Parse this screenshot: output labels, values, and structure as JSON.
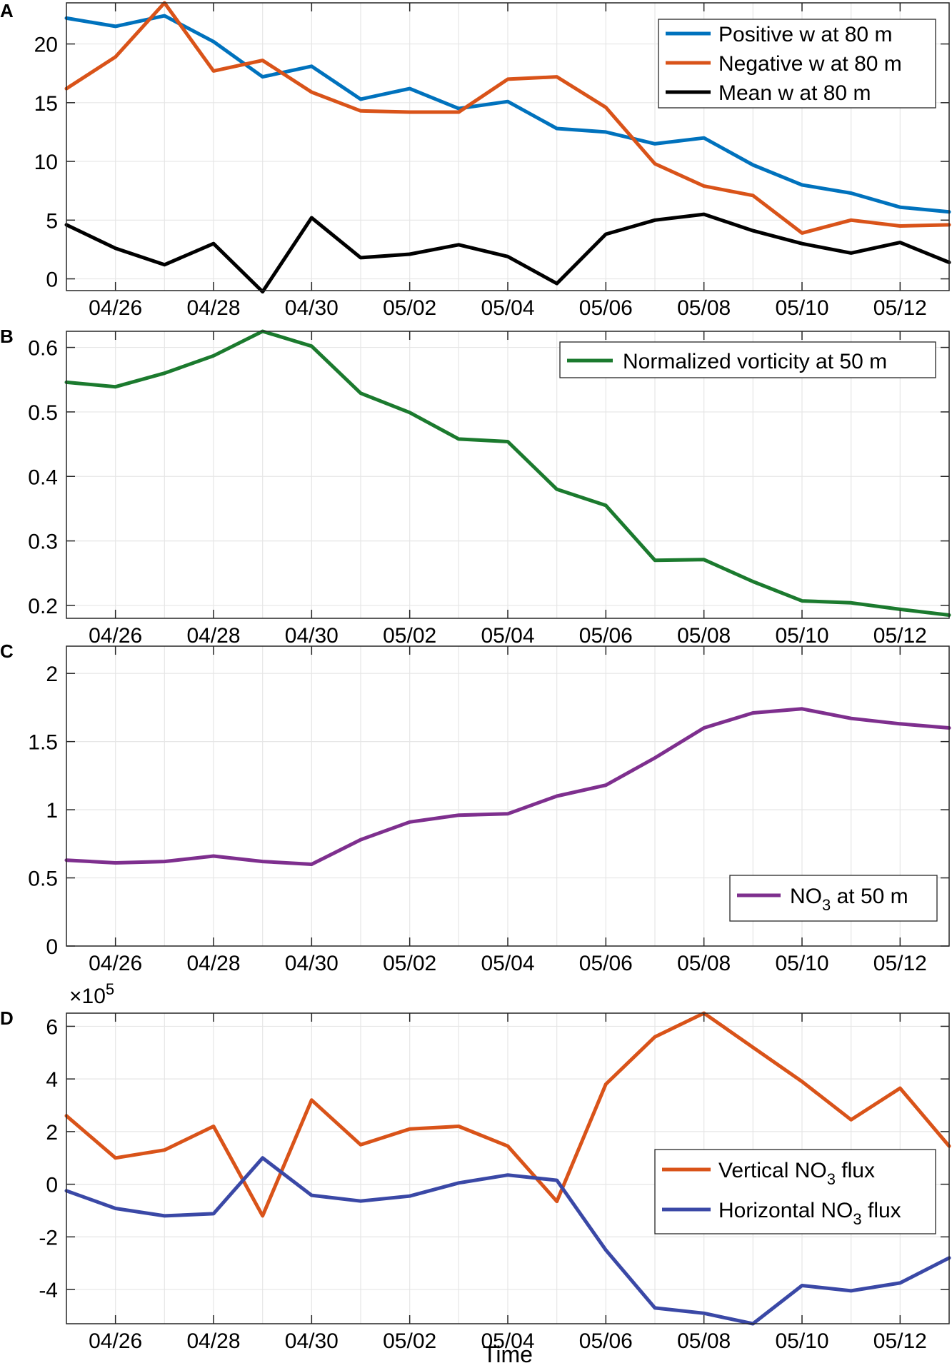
{
  "xlabel": "Time",
  "x_tick_labels": [
    "04/26",
    "04/28",
    "04/30",
    "05/02",
    "05/04",
    "05/06",
    "05/08",
    "05/10",
    "05/12"
  ],
  "chart_data": [
    {
      "panel": "A",
      "type": "line",
      "x": [
        "04/25",
        "04/26",
        "04/27",
        "04/28",
        "04/29",
        "04/30",
        "05/01",
        "05/02",
        "05/03",
        "05/04",
        "05/05",
        "05/06",
        "05/07",
        "05/08",
        "05/09",
        "05/10",
        "05/11",
        "05/12",
        "05/13"
      ],
      "ylim": [
        -1,
        23.5
      ],
      "yticks": [
        0,
        5,
        10,
        15,
        20
      ],
      "ytick_labels": [
        "0",
        "5",
        "10",
        "15",
        "20"
      ],
      "legend_position": "top-right",
      "series": [
        {
          "name": "Positive w at 80 m",
          "color": "#0072BD",
          "values": [
            22.2,
            21.5,
            22.4,
            20.2,
            17.2,
            18.1,
            15.3,
            16.2,
            14.5,
            15.1,
            12.8,
            12.5,
            11.5,
            12.0,
            9.7,
            8.0,
            7.3,
            6.1,
            5.7
          ]
        },
        {
          "name": "Negative w at 80 m",
          "color": "#D95319",
          "values": [
            16.2,
            18.9,
            23.5,
            17.7,
            18.6,
            15.9,
            14.3,
            14.2,
            14.2,
            17.0,
            17.2,
            14.6,
            9.8,
            7.9,
            7.1,
            3.9,
            5.0,
            4.5,
            4.6
          ]
        },
        {
          "name": "Mean w at 80 m",
          "color": "#000000",
          "values": [
            4.6,
            2.6,
            1.2,
            3.0,
            -1.1,
            5.2,
            1.8,
            2.1,
            2.9,
            1.9,
            -0.4,
            3.8,
            5.0,
            5.5,
            4.1,
            3.0,
            2.2,
            3.1,
            1.4
          ]
        }
      ]
    },
    {
      "panel": "B",
      "type": "line",
      "x": [
        "04/25",
        "04/26",
        "04/27",
        "04/28",
        "04/29",
        "04/30",
        "05/01",
        "05/02",
        "05/03",
        "05/04",
        "05/05",
        "05/06",
        "05/07",
        "05/08",
        "05/09",
        "05/10",
        "05/11",
        "05/12",
        "05/13"
      ],
      "ylim": [
        0.18,
        0.625
      ],
      "yticks": [
        0.2,
        0.3,
        0.4,
        0.5,
        0.6
      ],
      "ytick_labels": [
        "0.2",
        "0.3",
        "0.4",
        "0.5",
        "0.6"
      ],
      "legend_position": "top-right",
      "series": [
        {
          "name": "Normalized vorticity at 50 m",
          "color": "#1B7A2E",
          "values": [
            0.546,
            0.539,
            0.56,
            0.587,
            0.625,
            0.602,
            0.529,
            0.499,
            0.458,
            0.454,
            0.38,
            0.355,
            0.27,
            0.271,
            0.237,
            0.207,
            0.204,
            0.194,
            0.185
          ]
        }
      ]
    },
    {
      "panel": "C",
      "type": "line",
      "x": [
        "04/25",
        "04/26",
        "04/27",
        "04/28",
        "04/29",
        "04/30",
        "05/01",
        "05/02",
        "05/03",
        "05/04",
        "05/05",
        "05/06",
        "05/07",
        "05/08",
        "05/09",
        "05/10",
        "05/11",
        "05/12",
        "05/13"
      ],
      "ylim": [
        0,
        2.2
      ],
      "yticks": [
        0,
        0.5,
        1,
        1.5,
        2
      ],
      "ytick_labels": [
        "0",
        "0.5",
        "1",
        "1.5",
        "2"
      ],
      "legend_position": "bottom-right",
      "series": [
        {
          "name_base": "NO",
          "name_sub": "3",
          "name_rest": " at 50 m",
          "color": "#7E2F8E",
          "values": [
            0.63,
            0.61,
            0.62,
            0.66,
            0.62,
            0.6,
            0.78,
            0.91,
            0.96,
            0.97,
            1.1,
            1.18,
            1.38,
            1.6,
            1.71,
            1.74,
            1.67,
            1.63,
            1.6
          ]
        }
      ]
    },
    {
      "panel": "D",
      "type": "line",
      "x": [
        "04/25",
        "04/26",
        "04/27",
        "04/28",
        "04/29",
        "04/30",
        "05/01",
        "05/02",
        "05/03",
        "05/04",
        "05/05",
        "05/06",
        "05/07",
        "05/08",
        "05/09",
        "05/10",
        "05/11",
        "05/12",
        "05/13"
      ],
      "ylim": [
        -5.3,
        6.5
      ],
      "yticks": [
        -4,
        -2,
        0,
        2,
        4,
        6
      ],
      "ytick_labels": [
        "-4",
        "-2",
        "0",
        "2",
        "4",
        "6"
      ],
      "y_multiplier_base": "×10",
      "y_multiplier_exp": "5",
      "legend_position": "bottom-right",
      "series": [
        {
          "name_base": "Vertical NO",
          "name_sub": "3",
          "name_rest": " flux",
          "color": "#D95319",
          "values": [
            2.6,
            1.0,
            1.3,
            2.2,
            -1.2,
            3.2,
            1.5,
            2.1,
            2.2,
            1.45,
            -0.65,
            3.8,
            5.6,
            6.5,
            5.2,
            3.9,
            2.45,
            3.65,
            1.45
          ]
        },
        {
          "name_base": "Horizontal NO",
          "name_sub": "3",
          "name_rest": " flux",
          "color": "#3A48A6",
          "values": [
            -0.25,
            -0.92,
            -1.2,
            -1.12,
            1.0,
            -0.42,
            -0.64,
            -0.45,
            0.05,
            0.35,
            0.15,
            -2.5,
            -4.7,
            -4.9,
            -5.3,
            -3.85,
            -4.05,
            -3.75,
            -2.8
          ]
        }
      ]
    }
  ]
}
